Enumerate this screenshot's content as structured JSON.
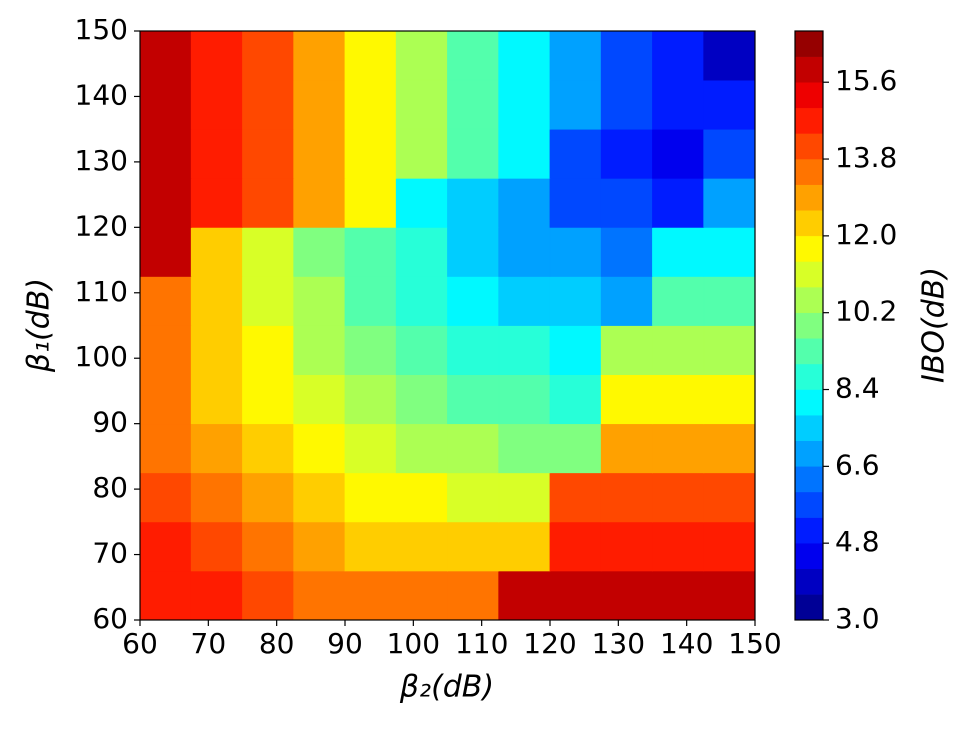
{
  "chart_data": {
    "type": "contourf",
    "xlabel": "β₂(dB)",
    "ylabel": "β₁(dB)",
    "colorbar_label": "IBO(dB)",
    "colormap": "jet",
    "x": [
      63.75,
      71.25,
      78.75,
      86.25,
      93.75,
      101.25,
      108.75,
      116.25,
      123.75,
      131.25,
      138.75,
      146.25
    ],
    "y": [
      63.75,
      71.25,
      78.75,
      86.25,
      93.75,
      101.25,
      108.75,
      116.25,
      123.75,
      131.25,
      138.75,
      146.25
    ],
    "z": [
      [
        14.9,
        14.4,
        14.0,
        13.7,
        13.4,
        13.3,
        13.2,
        16.0,
        16.0,
        16.0,
        16.0,
        16.0
      ],
      [
        14.4,
        13.8,
        13.3,
        12.9,
        12.5,
        12.3,
        12.1,
        12.1,
        14.9,
        14.9,
        14.9,
        14.9
      ],
      [
        14.0,
        13.3,
        12.7,
        12.2,
        11.7,
        11.4,
        11.2,
        11.0,
        13.8,
        13.8,
        13.8,
        13.8
      ],
      [
        13.7,
        12.9,
        12.2,
        11.6,
        11.0,
        10.6,
        10.3,
        10.0,
        9.9,
        12.7,
        12.7,
        12.7
      ],
      [
        13.4,
        12.5,
        11.7,
        11.0,
        10.4,
        9.9,
        9.5,
        9.2,
        8.9,
        11.5,
        11.5,
        11.5
      ],
      [
        13.3,
        12.3,
        11.4,
        10.6,
        9.9,
        9.3,
        8.8,
        8.4,
        8.0,
        10.4,
        10.4,
        10.4
      ],
      [
        13.2,
        12.1,
        11.2,
        10.3,
        9.5,
        8.8,
        8.2,
        7.7,
        7.2,
        6.9,
        9.3,
        9.3
      ],
      [
        16.0,
        12.1,
        11.0,
        10.0,
        9.2,
        8.4,
        7.7,
        7.1,
        6.6,
        6.1,
        8.2,
        8.2
      ],
      [
        16.0,
        14.9,
        13.8,
        12.7,
        11.5,
        8.0,
        7.2,
        6.6,
        5.9,
        5.4,
        5.0,
        7.0
      ],
      [
        16.0,
        14.9,
        13.8,
        12.7,
        11.5,
        10.4,
        9.3,
        8.2,
        5.4,
        4.8,
        4.3,
        5.9
      ],
      [
        16.0,
        14.9,
        13.8,
        12.7,
        11.5,
        10.4,
        9.3,
        8.2,
        7.0,
        5.9,
        4.8,
        4.8
      ],
      [
        16.0,
        14.9,
        13.8,
        12.7,
        11.5,
        10.4,
        9.3,
        8.2,
        7.0,
        5.9,
        4.8,
        3.7
      ]
    ],
    "xlim": [
      60,
      150
    ],
    "xticks": [
      60,
      70,
      80,
      90,
      100,
      110,
      120,
      130,
      140,
      150
    ],
    "ylim": [
      60,
      150
    ],
    "yticks": [
      60,
      70,
      80,
      90,
      100,
      110,
      120,
      130,
      140,
      150
    ],
    "levels": [
      3.0,
      3.6,
      4.2,
      4.8,
      5.4,
      6.0,
      6.6,
      7.2,
      7.8,
      8.4,
      9.0,
      9.6,
      10.2,
      10.8,
      11.4,
      12.0,
      12.6,
      13.2,
      13.8,
      14.4,
      15.0,
      15.6,
      16.2,
      16.8
    ],
    "clim": [
      3,
      16.8
    ],
    "cticks": [
      {
        "value": 3,
        "label": "3.0"
      },
      {
        "value": 4.8,
        "label": "4.8"
      },
      {
        "value": 6.6,
        "label": "6.6"
      },
      {
        "value": 8.4,
        "label": "8.4"
      },
      {
        "value": 10.2,
        "label": "10.2"
      },
      {
        "value": 12,
        "label": "12.0"
      },
      {
        "value": 13.8,
        "label": "13.8"
      },
      {
        "value": 15.6,
        "label": "15.6"
      }
    ]
  }
}
